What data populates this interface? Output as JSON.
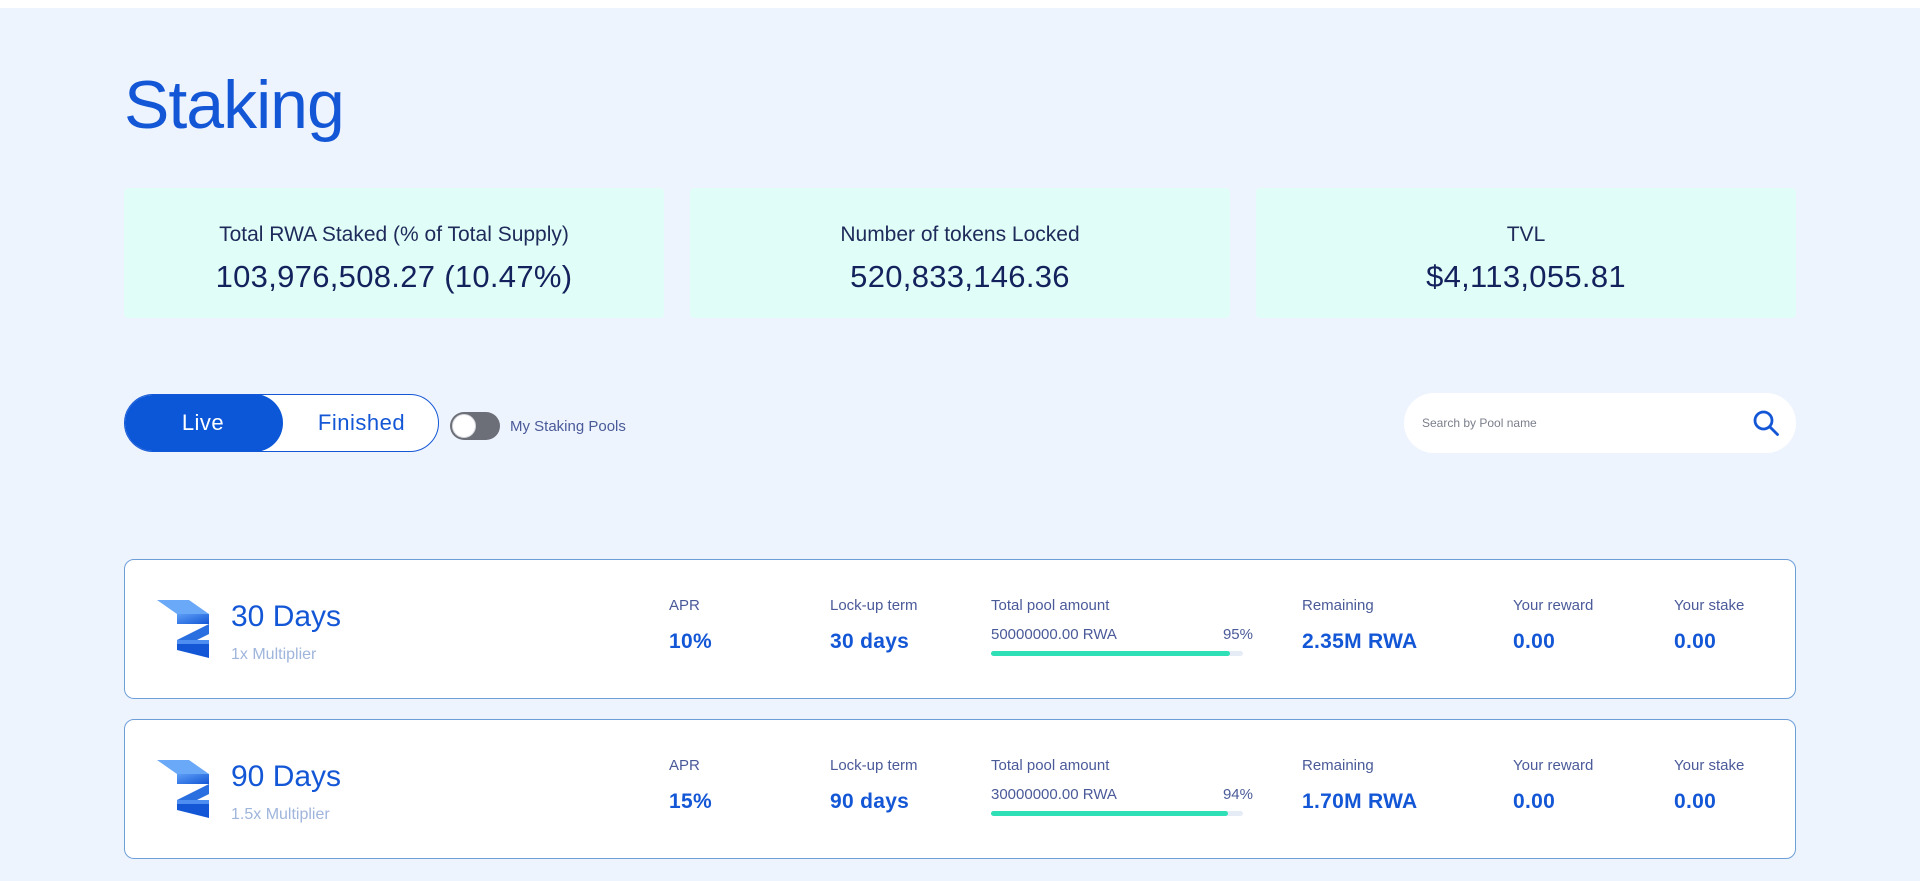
{
  "page": {
    "title": "Staking"
  },
  "stats": [
    {
      "label": "Total RWA Staked (% of Total Supply)",
      "value": "103,976,508.27 (10.47%)"
    },
    {
      "label": "Number of tokens Locked",
      "value": "520,833,146.36"
    },
    {
      "label": "TVL",
      "value": "$4,113,055.81"
    }
  ],
  "filters": {
    "live_label": "Live",
    "finished_label": "Finished",
    "active_tab": "Live",
    "my_pools_label": "My Staking Pools",
    "my_pools_enabled": false
  },
  "search": {
    "placeholder": "Search by Pool name",
    "value": ""
  },
  "columns": {
    "apr": "APR",
    "lockup": "Lock-up term",
    "total_pool": "Total pool amount",
    "remaining": "Remaining",
    "reward": "Your reward",
    "stake": "Your stake"
  },
  "pools": [
    {
      "name": "30 Days",
      "multiplier": "1x Multiplier",
      "apr": "10%",
      "lockup": "30 days",
      "total_pool": "50000000.00 RWA",
      "filled_pct": "95%",
      "filled_fraction": 0.95,
      "remaining": "2.35M RWA",
      "reward": "0.00",
      "stake": "0.00"
    },
    {
      "name": "90 Days",
      "multiplier": "1.5x Multiplier",
      "apr": "15%",
      "lockup": "90 days",
      "total_pool": "30000000.00 RWA",
      "filled_pct": "94%",
      "filled_fraction": 0.94,
      "remaining": "1.70M RWA",
      "reward": "0.00",
      "stake": "0.00"
    }
  ],
  "colors": {
    "accent": "#1357d6",
    "background": "#eef4fe",
    "stat_card": "#e1fdf7",
    "progress": "#2fe0b6"
  },
  "icons": {
    "search": "search-icon",
    "pool_logo": "rwa-logo-icon"
  }
}
